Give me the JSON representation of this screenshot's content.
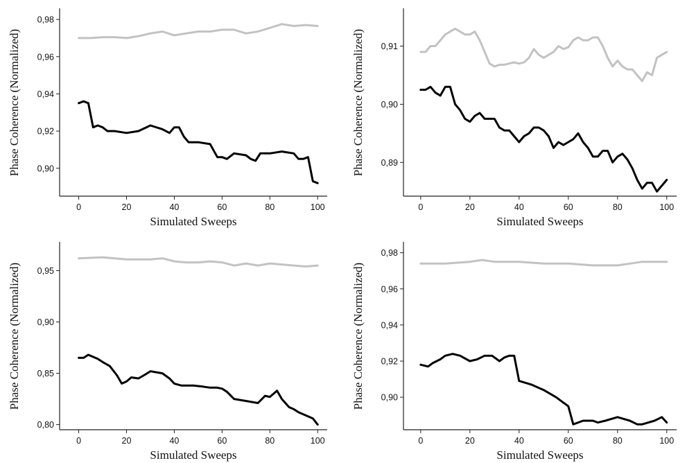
{
  "chart_data": [
    {
      "type": "line",
      "xlabel": "Simulated Sweeps",
      "ylabel": "Phase Coherence (Normalized)",
      "xlim": [
        -8,
        104
      ],
      "ylim": [
        0.885,
        0.986
      ],
      "xticks": [
        0,
        20,
        40,
        60,
        80,
        100
      ],
      "yticks": [
        0.9,
        0.92,
        0.94,
        0.96,
        0.98
      ],
      "ytick_labels": [
        "0,90",
        "0,92",
        "0,94",
        "0,96",
        "0,98"
      ],
      "series": [
        {
          "color": "#c2c2c2",
          "x": [
            0,
            5,
            10,
            15,
            20,
            25,
            30,
            35,
            40,
            45,
            50,
            55,
            60,
            65,
            70,
            75,
            80,
            85,
            90,
            95,
            100
          ],
          "y": [
            0.97,
            0.97,
            0.9705,
            0.9705,
            0.97,
            0.971,
            0.9725,
            0.9735,
            0.9715,
            0.9725,
            0.9735,
            0.9735,
            0.9745,
            0.9745,
            0.9725,
            0.9735,
            0.9755,
            0.9775,
            0.9765,
            0.977,
            0.9765
          ]
        },
        {
          "color": "#000000",
          "x": [
            0,
            2,
            4,
            6,
            8,
            10,
            12,
            15,
            20,
            25,
            30,
            35,
            38,
            40,
            42,
            44,
            46,
            48,
            50,
            55,
            58,
            60,
            62,
            65,
            70,
            72,
            74,
            76,
            78,
            80,
            85,
            90,
            92,
            94,
            96,
            98,
            100
          ],
          "y": [
            0.935,
            0.936,
            0.935,
            0.922,
            0.923,
            0.922,
            0.92,
            0.92,
            0.919,
            0.92,
            0.923,
            0.921,
            0.919,
            0.922,
            0.922,
            0.917,
            0.914,
            0.914,
            0.914,
            0.913,
            0.906,
            0.906,
            0.905,
            0.908,
            0.907,
            0.905,
            0.904,
            0.908,
            0.908,
            0.908,
            0.909,
            0.908,
            0.905,
            0.905,
            0.906,
            0.893,
            0.892
          ]
        }
      ]
    },
    {
      "type": "line",
      "xlabel": "Simulated Sweeps",
      "ylabel": "Phase Coherence (Normalized)",
      "xlim": [
        -7,
        104
      ],
      "ylim": [
        0.8842,
        0.9165
      ],
      "xticks": [
        0,
        20,
        40,
        60,
        80,
        100
      ],
      "yticks": [
        0.89,
        0.9,
        0.91
      ],
      "ytick_labels": [
        "0,89",
        "0,90",
        "0,91"
      ],
      "series": [
        {
          "color": "#c2c2c2",
          "x": [
            0,
            2,
            4,
            6,
            8,
            10,
            12,
            14,
            16,
            18,
            20,
            22,
            24,
            26,
            28,
            30,
            32,
            34,
            36,
            38,
            40,
            42,
            44,
            46,
            48,
            50,
            52,
            54,
            56,
            58,
            60,
            62,
            64,
            66,
            68,
            70,
            72,
            74,
            76,
            78,
            80,
            82,
            84,
            86,
            88,
            90,
            92,
            94,
            96,
            98,
            100
          ],
          "y": [
            0.909,
            0.909,
            0.91,
            0.91,
            0.911,
            0.912,
            0.9125,
            0.913,
            0.9125,
            0.912,
            0.912,
            0.9125,
            0.911,
            0.909,
            0.907,
            0.9065,
            0.9068,
            0.9068,
            0.907,
            0.9072,
            0.907,
            0.9072,
            0.908,
            0.9095,
            0.9085,
            0.908,
            0.9085,
            0.909,
            0.91,
            0.9095,
            0.9098,
            0.911,
            0.9115,
            0.911,
            0.911,
            0.9115,
            0.9115,
            0.91,
            0.908,
            0.9065,
            0.9075,
            0.9065,
            0.906,
            0.906,
            0.905,
            0.904,
            0.9055,
            0.905,
            0.908,
            0.9085,
            0.909
          ]
        },
        {
          "color": "#000000",
          "x": [
            0,
            2,
            4,
            6,
            8,
            10,
            12,
            14,
            16,
            18,
            20,
            22,
            24,
            26,
            28,
            30,
            32,
            34,
            36,
            38,
            40,
            42,
            44,
            46,
            48,
            50,
            52,
            54,
            56,
            58,
            60,
            62,
            64,
            66,
            68,
            70,
            72,
            74,
            76,
            78,
            80,
            82,
            84,
            86,
            88,
            90,
            92,
            94,
            96,
            98,
            100
          ],
          "y": [
            0.9025,
            0.9025,
            0.903,
            0.902,
            0.9015,
            0.903,
            0.903,
            0.9,
            0.899,
            0.8975,
            0.897,
            0.898,
            0.8985,
            0.8975,
            0.8975,
            0.8975,
            0.896,
            0.8955,
            0.8955,
            0.8945,
            0.8935,
            0.8945,
            0.895,
            0.896,
            0.896,
            0.8955,
            0.8945,
            0.8925,
            0.8935,
            0.893,
            0.8935,
            0.894,
            0.895,
            0.8935,
            0.8925,
            0.891,
            0.891,
            0.892,
            0.892,
            0.89,
            0.891,
            0.8915,
            0.8905,
            0.889,
            0.887,
            0.8855,
            0.8865,
            0.8865,
            0.885,
            0.886,
            0.887
          ]
        }
      ]
    },
    {
      "type": "line",
      "xlabel": "Simulated Sweeps",
      "ylabel": "Phase Coherence (Normalized)",
      "xlim": [
        -8,
        104
      ],
      "ylim": [
        0.795,
        0.978
      ],
      "xticks": [
        0,
        20,
        40,
        60,
        80,
        100
      ],
      "yticks": [
        0.8,
        0.85,
        0.9,
        0.95
      ],
      "ytick_labels": [
        "0,80",
        "0,85",
        "0,90",
        "0,95"
      ],
      "series": [
        {
          "color": "#c2c2c2",
          "x": [
            0,
            10,
            20,
            30,
            35,
            40,
            45,
            50,
            55,
            60,
            65,
            70,
            75,
            80,
            85,
            90,
            95,
            100
          ],
          "y": [
            0.962,
            0.963,
            0.961,
            0.961,
            0.962,
            0.959,
            0.958,
            0.958,
            0.959,
            0.958,
            0.955,
            0.957,
            0.955,
            0.957,
            0.956,
            0.955,
            0.954,
            0.955
          ]
        },
        {
          "color": "#000000",
          "x": [
            0,
            2,
            4,
            8,
            10,
            13,
            16,
            18,
            20,
            22,
            25,
            28,
            30,
            35,
            38,
            40,
            43,
            48,
            52,
            55,
            58,
            60,
            62,
            65,
            70,
            75,
            78,
            80,
            83,
            85,
            88,
            90,
            92,
            95,
            98,
            100
          ],
          "y": [
            0.865,
            0.865,
            0.868,
            0.864,
            0.861,
            0.857,
            0.848,
            0.84,
            0.842,
            0.846,
            0.845,
            0.849,
            0.852,
            0.85,
            0.845,
            0.84,
            0.838,
            0.838,
            0.837,
            0.836,
            0.836,
            0.835,
            0.832,
            0.825,
            0.823,
            0.821,
            0.828,
            0.827,
            0.833,
            0.825,
            0.817,
            0.815,
            0.812,
            0.809,
            0.806,
            0.8
          ]
        }
      ]
    },
    {
      "type": "line",
      "xlabel": "Simulated Sweeps",
      "ylabel": "Phase Coherence (Normalized)",
      "xlim": [
        -7,
        104
      ],
      "ylim": [
        0.882,
        0.986
      ],
      "xticks": [
        0,
        20,
        40,
        60,
        80,
        100
      ],
      "yticks": [
        0.9,
        0.92,
        0.94,
        0.96,
        0.98
      ],
      "ytick_labels": [
        "0,90",
        "0,92",
        "0,94",
        "0,96",
        "0,98"
      ],
      "series": [
        {
          "color": "#c2c2c2",
          "x": [
            0,
            10,
            20,
            25,
            30,
            40,
            50,
            60,
            70,
            80,
            85,
            90,
            100
          ],
          "y": [
            0.974,
            0.974,
            0.975,
            0.976,
            0.975,
            0.975,
            0.974,
            0.974,
            0.973,
            0.973,
            0.974,
            0.975,
            0.975
          ]
        },
        {
          "color": "#000000",
          "x": [
            0,
            3,
            5,
            8,
            10,
            13,
            16,
            20,
            23,
            26,
            29,
            32,
            34,
            36,
            38,
            40,
            45,
            50,
            55,
            58,
            60,
            62,
            64,
            66,
            68,
            70,
            72,
            75,
            80,
            85,
            88,
            90,
            95,
            98,
            100
          ],
          "y": [
            0.918,
            0.917,
            0.919,
            0.921,
            0.923,
            0.924,
            0.923,
            0.92,
            0.921,
            0.923,
            0.923,
            0.92,
            0.922,
            0.923,
            0.923,
            0.909,
            0.907,
            0.904,
            0.9,
            0.897,
            0.895,
            0.885,
            0.886,
            0.887,
            0.887,
            0.887,
            0.886,
            0.887,
            0.889,
            0.887,
            0.885,
            0.885,
            0.887,
            0.889,
            0.886
          ]
        }
      ]
    }
  ]
}
